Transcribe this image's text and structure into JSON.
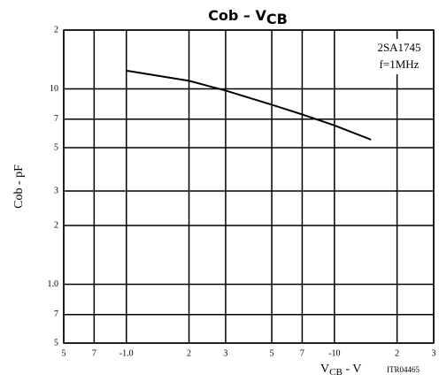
{
  "chart_data": {
    "type": "line",
    "title": {
      "text": "Cob  –  V",
      "subscript": "CB"
    },
    "xlabel": {
      "text": "V",
      "subscript": "CB",
      "suffix": " - V"
    },
    "ylabel": "Cob - pF",
    "annotations": [
      "2SA1745",
      "f=1MHz",
      "ITR04465"
    ],
    "xscale": "log",
    "yscale": "log",
    "grid": true,
    "xlim": [
      0.5,
      30
    ],
    "xticks": [
      {
        "value": 0.5,
        "label": "5"
      },
      {
        "value": 0.7,
        "label": "7"
      },
      {
        "value": 1,
        "label": "-1.0"
      },
      2,
      3,
      5,
      7,
      {
        "value": 10,
        "label": "-10"
      },
      {
        "value": 20,
        "label": "2"
      },
      {
        "value": 30,
        "label": "3"
      }
    ],
    "ylim": [
      0.5,
      20
    ],
    "yticks": [
      {
        "value": 0.5,
        "label": "5"
      },
      {
        "value": 0.7,
        "label": "7"
      },
      {
        "value": 1,
        "label": "1.0"
      },
      2,
      3,
      5,
      7,
      10,
      {
        "value": 20,
        "label": "2"
      }
    ],
    "x": [
      1,
      2,
      3,
      5,
      7,
      10,
      15
    ],
    "series": [
      {
        "name": "2SA1745",
        "color": "#000000",
        "values": [
          12.4,
          11.0,
          9.8,
          8.3,
          7.4,
          6.5,
          5.5
        ]
      }
    ]
  }
}
